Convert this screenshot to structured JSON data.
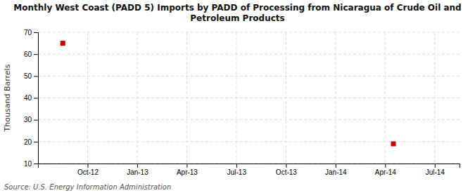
{
  "chart_data": {
    "type": "scatter",
    "title": "Monthly West Coast (PADD 5) Imports by PADD of Processing from Nicaragua of Crude Oil and\nPetroleum Products",
    "y_label": "Thousand Barrels",
    "source": "Source: U.S. Energy Information Administration",
    "x": [
      1.5,
      21.5
    ],
    "values": [
      65,
      19
    ],
    "color": "#cc0000",
    "marker": "square",
    "xlim": [
      0,
      25.5
    ],
    "xticks": [
      {
        "value": 3,
        "label": "Oct-12"
      },
      {
        "value": 6,
        "label": "Jan-13"
      },
      {
        "value": 9,
        "label": "Apr-13"
      },
      {
        "value": 12,
        "label": "Jul-13"
      },
      {
        "value": 15,
        "label": "Oct-13"
      },
      {
        "value": 18,
        "label": "Jan-14"
      },
      {
        "value": 21,
        "label": "Apr-14"
      },
      {
        "value": 24,
        "label": "Jul-14"
      }
    ],
    "ylim": [
      10,
      70
    ],
    "yticks": [
      10,
      20,
      30,
      40,
      50,
      60,
      70
    ],
    "grid": true
  }
}
